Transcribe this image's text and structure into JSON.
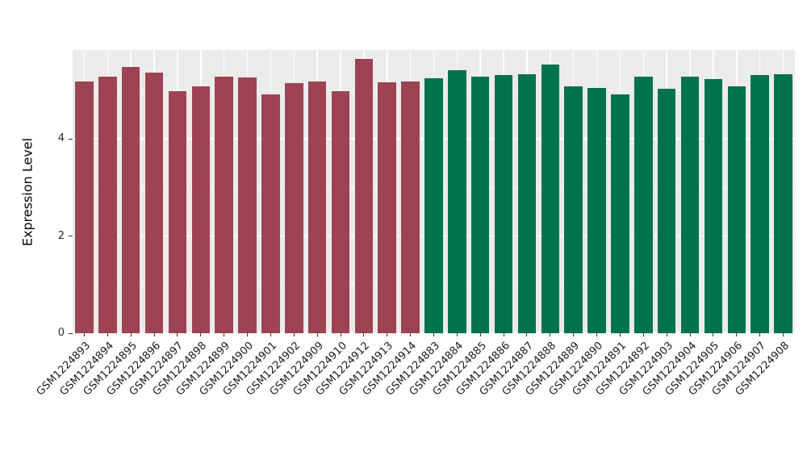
{
  "chart_data": {
    "type": "bar",
    "title": "",
    "xlabel": "",
    "ylabel": "Expression Level",
    "ylim": [
      0,
      5.83
    ],
    "yticks": [
      0,
      2,
      4
    ],
    "yticks_minor": [
      1,
      3,
      5
    ],
    "grid": true,
    "legend": "none",
    "panel_background": "#ebebeb",
    "group_colors": {
      "group1": "#9e4352",
      "group2": "#00734d"
    },
    "bars": [
      {
        "label": "GSM1224893",
        "value": 5.19,
        "color": "#9e4352"
      },
      {
        "label": "GSM1224894",
        "value": 5.28,
        "color": "#9e4352"
      },
      {
        "label": "GSM1224895",
        "value": 5.48,
        "color": "#9e4352"
      },
      {
        "label": "GSM1224896",
        "value": 5.36,
        "color": "#9e4352"
      },
      {
        "label": "GSM1224897",
        "value": 4.98,
        "color": "#9e4352"
      },
      {
        "label": "GSM1224898",
        "value": 5.08,
        "color": "#9e4352"
      },
      {
        "label": "GSM1224899",
        "value": 5.28,
        "color": "#9e4352"
      },
      {
        "label": "GSM1224900",
        "value": 5.27,
        "color": "#9e4352"
      },
      {
        "label": "GSM1224901",
        "value": 4.91,
        "color": "#9e4352"
      },
      {
        "label": "GSM1224902",
        "value": 5.15,
        "color": "#9e4352"
      },
      {
        "label": "GSM1224909",
        "value": 5.18,
        "color": "#9e4352"
      },
      {
        "label": "GSM1224910",
        "value": 4.98,
        "color": "#9e4352"
      },
      {
        "label": "GSM1224912",
        "value": 5.64,
        "color": "#9e4352"
      },
      {
        "label": "GSM1224913",
        "value": 5.16,
        "color": "#9e4352"
      },
      {
        "label": "GSM1224914",
        "value": 5.19,
        "color": "#9e4352"
      },
      {
        "label": "GSM1224883",
        "value": 5.25,
        "color": "#00734d"
      },
      {
        "label": "GSM1224884",
        "value": 5.41,
        "color": "#00734d"
      },
      {
        "label": "GSM1224885",
        "value": 5.28,
        "color": "#00734d"
      },
      {
        "label": "GSM1224886",
        "value": 5.31,
        "color": "#00734d"
      },
      {
        "label": "GSM1224887",
        "value": 5.34,
        "color": "#00734d"
      },
      {
        "label": "GSM1224888",
        "value": 5.53,
        "color": "#00734d"
      },
      {
        "label": "GSM1224889",
        "value": 5.08,
        "color": "#00734d"
      },
      {
        "label": "GSM1224890",
        "value": 5.05,
        "color": "#00734d"
      },
      {
        "label": "GSM1224891",
        "value": 4.91,
        "color": "#00734d"
      },
      {
        "label": "GSM1224892",
        "value": 5.29,
        "color": "#00734d"
      },
      {
        "label": "GSM1224903",
        "value": 5.03,
        "color": "#00734d"
      },
      {
        "label": "GSM1224904",
        "value": 5.29,
        "color": "#00734d"
      },
      {
        "label": "GSM1224905",
        "value": 5.23,
        "color": "#00734d"
      },
      {
        "label": "GSM1224906",
        "value": 5.08,
        "color": "#00734d"
      },
      {
        "label": "GSM1224907",
        "value": 5.31,
        "color": "#00734d"
      },
      {
        "label": "GSM1224908",
        "value": 5.34,
        "color": "#00734d"
      }
    ]
  }
}
